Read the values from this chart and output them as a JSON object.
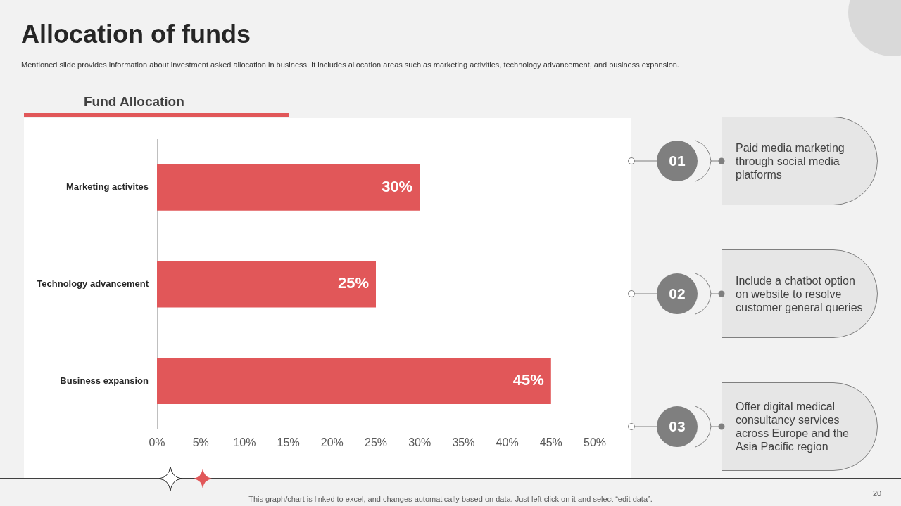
{
  "chart_data": {
    "type": "bar",
    "orientation": "horizontal",
    "title": "Allocation of funds",
    "subtitle": "Mentioned slide provides information about investment asked allocation in business. It includes allocation areas such as marketing activities, technology advancement, and business expansion.",
    "categories": [
      "Marketing activites",
      "Technology advancement",
      "Business expansion"
    ],
    "values": [
      30,
      25,
      45
    ],
    "value_labels": [
      "30%",
      "25%",
      "45%"
    ],
    "color": "#e15759",
    "xlim": [
      0,
      50
    ],
    "xticks": [
      {
        "value": 0,
        "label": "0%"
      },
      {
        "value": 5,
        "label": "5%"
      },
      {
        "value": 10,
        "label": "10%"
      },
      {
        "value": 15,
        "label": "15%"
      },
      {
        "value": 20,
        "label": "20%"
      },
      {
        "value": 25,
        "label": "25%"
      },
      {
        "value": 30,
        "label": "30%"
      },
      {
        "value": 35,
        "label": "35%"
      },
      {
        "value": 40,
        "label": "40%"
      },
      {
        "value": 45,
        "label": "45%"
      },
      {
        "value": 50,
        "label": "50%"
      }
    ],
    "grid": false,
    "legend": false,
    "annotations": [
      "Fund Allocation",
      "01",
      "Paid media marketing through social media platforms",
      "02",
      "Include  a chatbot option on website to resolve customer general queries",
      "03",
      "Offer digital medical consultancy  services across Europe and the Asia Pacific region",
      "This graph/chart is linked to excel,  and changes automatically based on data. Just left click on it and select “edit data”.",
      "20"
    ]
  }
}
